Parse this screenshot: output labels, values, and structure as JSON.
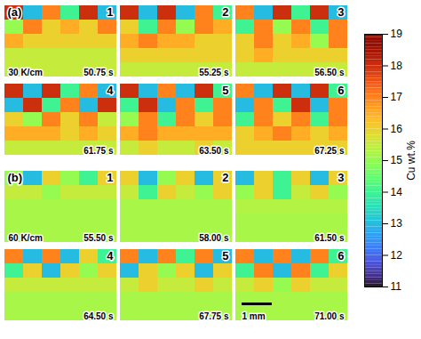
{
  "chart_data": {
    "type": "heatmap",
    "colorbar": {
      "label": "Cu wt.%",
      "lim": [
        11,
        19
      ],
      "ticks": [
        11,
        12,
        13,
        14,
        15,
        16,
        17,
        18,
        19
      ]
    },
    "groups": [
      {
        "label": "(a)",
        "condition": "30 K/cm",
        "panels": [
          {
            "number": 1,
            "time": "50.75 s",
            "cells": [
              [
                18,
                13,
                17,
                14,
                18,
                13
              ],
              [
                15,
                17,
                16,
                16.5,
                16,
                17
              ],
              [
                16.5,
                16,
                16,
                16,
                16,
                16
              ],
              [
                15.5,
                15.5,
                15.5,
                15.5,
                15.5,
                15.5
              ],
              [
                15.5,
                15.5,
                15.5,
                15.5,
                15.5,
                15.5
              ]
            ]
          },
          {
            "number": 2,
            "time": "55.25 s",
            "cells": [
              [
                18,
                13,
                18,
                13,
                17,
                14
              ],
              [
                16,
                14,
                17,
                15,
                17,
                16.5
              ],
              [
                16.5,
                17,
                16.5,
                16.5,
                16,
                16
              ],
              [
                16,
                16,
                16,
                16,
                16,
                16
              ],
              [
                15.5,
                15.5,
                15.5,
                15.5,
                15.5,
                15.5
              ]
            ]
          },
          {
            "number": 3,
            "time": "56.50 s",
            "cells": [
              [
                17,
                13,
                18,
                14,
                18,
                13
              ],
              [
                14,
                17,
                15,
                17,
                14,
                17
              ],
              [
                16,
                17,
                16,
                16.5,
                15,
                17
              ],
              [
                16,
                16.5,
                16,
                16,
                16,
                16
              ],
              [
                15.5,
                15.5,
                15.5,
                15.5,
                15.5,
                15.5
              ]
            ]
          },
          {
            "number": 4,
            "time": "61.75 s",
            "cells": [
              [
                18,
                13,
                18,
                14,
                17,
                13
              ],
              [
                13,
                18,
                14,
                17,
                13,
                18
              ],
              [
                16,
                15,
                17,
                16,
                17,
                15.5
              ],
              [
                16.5,
                16.5,
                16.5,
                16,
                16.5,
                16
              ],
              [
                15.5,
                15.5,
                15.5,
                15.5,
                15.5,
                15.5
              ]
            ]
          },
          {
            "number": 5,
            "time": "63.50 s",
            "cells": [
              [
                18,
                13,
                17,
                13,
                18,
                14
              ],
              [
                14,
                18,
                13,
                17,
                14,
                17
              ],
              [
                15,
                17,
                14,
                17,
                16,
                17
              ],
              [
                16.5,
                17,
                16.5,
                16.5,
                16.5,
                16.5
              ],
              [
                15.5,
                16,
                15.5,
                15.5,
                16,
                15.5
              ]
            ]
          },
          {
            "number": 6,
            "time": "67.25 s",
            "cells": [
              [
                17,
                13,
                18,
                13,
                18,
                14
              ],
              [
                13,
                17,
                14,
                18,
                13,
                17
              ],
              [
                14,
                17,
                16,
                17,
                14,
                17
              ],
              [
                16,
                16.5,
                17,
                16.5,
                16,
                16.5
              ],
              [
                16,
                16,
                16,
                16,
                16,
                16
              ]
            ]
          }
        ]
      },
      {
        "label": "(b)",
        "condition": "60 K/cm",
        "panels": [
          {
            "number": 1,
            "time": "55.50 s",
            "cells": [
              [
                15,
                13,
                16,
                15,
                14,
                16
              ],
              [
                15.5,
                15.5,
                15,
                15.5,
                15.5,
                15.5
              ],
              [
                15.2,
                15.2,
                15.2,
                15.2,
                15.2,
                15.2
              ],
              [
                15.2,
                15.2,
                15.2,
                15.2,
                15.2,
                15.2
              ],
              [
                15.2,
                15.2,
                15.2,
                15.2,
                15.2,
                15.2
              ]
            ]
          },
          {
            "number": 2,
            "time": "58.00 s",
            "cells": [
              [
                16,
                13,
                15,
                16,
                13,
                16
              ],
              [
                15.5,
                14,
                16,
                15.5,
                15,
                16
              ],
              [
                15.2,
                15.2,
                15.2,
                15.2,
                15.2,
                15.2
              ],
              [
                15.2,
                15.2,
                15.2,
                15.2,
                15.2,
                15.2
              ],
              [
                15.2,
                15.2,
                15.2,
                15.2,
                15.2,
                15.2
              ]
            ]
          },
          {
            "number": 3,
            "time": "61.50 s",
            "cells": [
              [
                13,
                16,
                14,
                16,
                13,
                16
              ],
              [
                15,
                16,
                14,
                15.5,
                16,
                15
              ],
              [
                15.3,
                15.3,
                15.3,
                15.3,
                15.3,
                15.3
              ],
              [
                15.2,
                15.2,
                15.2,
                15.2,
                15.2,
                15.2
              ],
              [
                15.2,
                15.2,
                15.2,
                15.2,
                15.2,
                15.2
              ]
            ]
          },
          {
            "number": 4,
            "time": "64.50 s",
            "cells": [
              [
                17,
                13,
                17,
                13,
                16,
                14
              ],
              [
                14,
                16,
                13,
                16,
                15,
                16
              ],
              [
                15.5,
                15.5,
                15.5,
                15.5,
                15.5,
                15.5
              ],
              [
                15.2,
                15.2,
                15.2,
                15.2,
                15.2,
                15.2
              ],
              [
                15.2,
                15.2,
                15.2,
                15.2,
                15.2,
                15.2
              ]
            ]
          },
          {
            "number": 5,
            "time": "67.75 s",
            "cells": [
              [
                17,
                13,
                17,
                14,
                17,
                13
              ],
              [
                13,
                16,
                15,
                16,
                13,
                16
              ],
              [
                15.5,
                16,
                15.5,
                15.5,
                16,
                15.5
              ],
              [
                15.2,
                15.2,
                15.2,
                15.2,
                15.2,
                15.2
              ],
              [
                15.2,
                15.2,
                15.2,
                15.2,
                15.2,
                15.2
              ]
            ]
          },
          {
            "number": 6,
            "time": "71.00 s",
            "scale_bar": "1 mm",
            "cells": [
              [
                17,
                13,
                17,
                13,
                17,
                14
              ],
              [
                14,
                17,
                13,
                17,
                14,
                16
              ],
              [
                15.5,
                16,
                15,
                16,
                15.5,
                15.5
              ],
              [
                15.2,
                15.2,
                15.2,
                15.2,
                15.2,
                15.2
              ],
              [
                15.2,
                15.2,
                15.2,
                15.2,
                15.2,
                15.2
              ]
            ]
          }
        ]
      }
    ]
  }
}
